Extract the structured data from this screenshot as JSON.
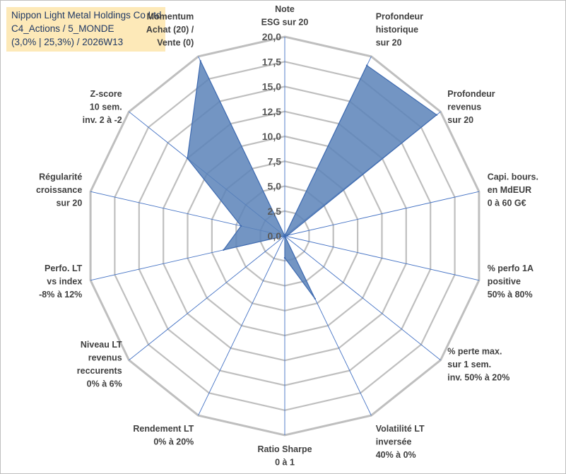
{
  "title": {
    "line1": "Nippon Light Metal Holdings Co Ltd",
    "line2": "C4_Actions / 5_MONDE",
    "line3": "(3,0% | 25,3%) / 2026W13"
  },
  "chart_data": {
    "type": "radar",
    "r_min": 0,
    "r_max": 20,
    "tick_values": [
      0,
      2.5,
      5,
      7.5,
      10,
      12.5,
      15,
      17.5,
      20
    ],
    "tick_labels": [
      "0,0",
      "2,5",
      "5,0",
      "7,5",
      "10,0",
      "12,5",
      "15,0",
      "17,5",
      "20,0"
    ],
    "axes": [
      {
        "label": [
          "Note",
          "ESG sur 20"
        ],
        "value": 0
      },
      {
        "label": [
          "Profondeur",
          "historique",
          "sur 20"
        ],
        "value": 19
      },
      {
        "label": [
          "Profondeur",
          "revenus",
          "sur 20"
        ],
        "value": 19.5
      },
      {
        "label": [
          "Capi. bours.",
          "en MdEUR",
          "0 à 60 G€"
        ],
        "value": 0.3
      },
      {
        "label": [
          "% perfo 1A",
          "positive",
          "50% à 80%"
        ],
        "value": 0
      },
      {
        "label": [
          "% perte max.",
          "sur 1 sem.",
          "inv. 50% à 20%"
        ],
        "value": 0
      },
      {
        "label": [
          "Volatilité LT",
          "inversée",
          "40% à 0%"
        ],
        "value": 7
      },
      {
        "label": [
          "Ratio Sharpe",
          "0 à 1"
        ],
        "value": 2.2
      },
      {
        "label": [
          "Rendement LT",
          "0% à 20%"
        ],
        "value": 0
      },
      {
        "label": [
          "Niveau LT",
          "revenus",
          "reccurents",
          "0% à 6%"
        ],
        "value": 0
      },
      {
        "label": [
          "Perfo. LT",
          "vs index",
          "-8% à 12%"
        ],
        "value": 6.3
      },
      {
        "label": [
          "Régularité",
          "croissance",
          "sur 20"
        ],
        "value": 4.5
      },
      {
        "label": [
          "Z-score",
          "10 sem.",
          "inv. 2 à -2"
        ],
        "value": 12.5
      },
      {
        "label": [
          "Momentum",
          "Achat (20) /",
          "Vente (0)"
        ],
        "value": 19.5
      }
    ],
    "series": [
      {
        "name": "Nippon Light Metal Holdings Co Ltd",
        "color": "#4f81bd"
      }
    ],
    "colors": {
      "fill": "#5b82b8",
      "stroke": "#3e6ab0",
      "grid": "#bfbfbf",
      "spoke": "#4472c4"
    }
  }
}
